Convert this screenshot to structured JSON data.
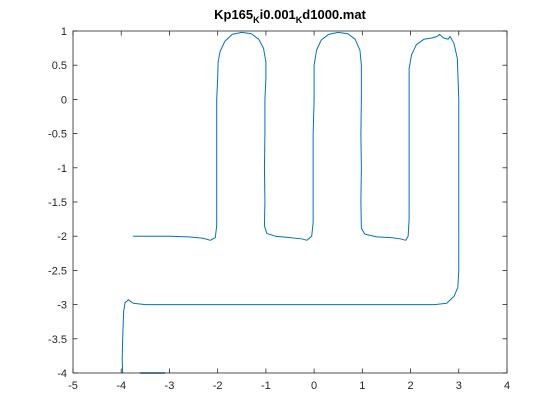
{
  "chart_data": {
    "type": "line",
    "title": {
      "segments": [
        {
          "text": "Kp165",
          "sub": false
        },
        {
          "text": "K",
          "sub": true
        },
        {
          "text": "i0.001",
          "sub": false
        },
        {
          "text": "K",
          "sub": true
        },
        {
          "text": "d1000.mat",
          "sub": false
        }
      ]
    },
    "xlabel": "",
    "ylabel": "",
    "xlim": [
      -5,
      4
    ],
    "ylim": [
      -4,
      1
    ],
    "xticks": [
      -5,
      -4,
      -3,
      -2,
      -1,
      0,
      1,
      2,
      3,
      4
    ],
    "yticks": [
      1,
      0.5,
      0,
      -0.5,
      -1,
      -1.5,
      -2,
      -2.5,
      -3,
      -3.5,
      -4
    ],
    "xtick_labels": [
      "-5",
      "-4",
      "-3",
      "-2",
      "-1",
      "0",
      "1",
      "2",
      "3",
      "4"
    ],
    "ytick_labels": [
      "1",
      "0.5",
      "0",
      "-0.5",
      "-1",
      "-1.5",
      "-2",
      "-2.5",
      "-3",
      "-3.5",
      "-4"
    ],
    "grid": false,
    "line_color": "#0072BD",
    "series": [
      {
        "points": [
          [
            -3.75,
            -2.0
          ],
          [
            -3.4,
            -2.0
          ],
          [
            -3.0,
            -2.0
          ],
          [
            -2.6,
            -2.01
          ],
          [
            -2.3,
            -2.03
          ],
          [
            -2.15,
            -2.06
          ],
          [
            -2.05,
            -2.02
          ],
          [
            -2.02,
            -1.85
          ],
          [
            -2.02,
            -1.5
          ],
          [
            -2.02,
            -1.0
          ],
          [
            -2.02,
            -0.5
          ],
          [
            -2.02,
            0.0
          ],
          [
            -2.0,
            0.3
          ],
          [
            -1.99,
            0.55
          ],
          [
            -1.95,
            0.7
          ],
          [
            -1.85,
            0.85
          ],
          [
            -1.7,
            0.95
          ],
          [
            -1.5,
            0.98
          ],
          [
            -1.3,
            0.96
          ],
          [
            -1.15,
            0.88
          ],
          [
            -1.05,
            0.75
          ],
          [
            -1.0,
            0.55
          ],
          [
            -1.0,
            0.3
          ],
          [
            -1.02,
            0.0
          ],
          [
            -1.02,
            -0.5
          ],
          [
            -1.03,
            -1.0
          ],
          [
            -1.02,
            -1.5
          ],
          [
            -1.03,
            -1.85
          ],
          [
            -0.98,
            -1.96
          ],
          [
            -0.8,
            -2.0
          ],
          [
            -0.5,
            -2.02
          ],
          [
            -0.25,
            -2.04
          ],
          [
            -0.15,
            -2.06
          ],
          [
            -0.05,
            -2.0
          ],
          [
            -0.02,
            -1.8
          ],
          [
            -0.02,
            -1.5
          ],
          [
            -0.02,
            -1.0
          ],
          [
            -0.02,
            -0.5
          ],
          [
            0.0,
            0.0
          ],
          [
            0.0,
            0.5
          ],
          [
            0.05,
            0.72
          ],
          [
            0.15,
            0.87
          ],
          [
            0.3,
            0.95
          ],
          [
            0.5,
            0.98
          ],
          [
            0.7,
            0.96
          ],
          [
            0.85,
            0.88
          ],
          [
            0.95,
            0.72
          ],
          [
            0.98,
            0.5
          ],
          [
            0.98,
            0.0
          ],
          [
            0.97,
            -0.5
          ],
          [
            0.98,
            -1.0
          ],
          [
            0.97,
            -1.5
          ],
          [
            0.98,
            -1.88
          ],
          [
            1.05,
            -1.97
          ],
          [
            1.3,
            -2.01
          ],
          [
            1.6,
            -2.02
          ],
          [
            1.8,
            -2.04
          ],
          [
            1.9,
            -2.06
          ],
          [
            1.95,
            -2.0
          ],
          [
            1.97,
            -1.75
          ],
          [
            1.97,
            -1.5
          ],
          [
            1.97,
            -1.0
          ],
          [
            1.97,
            -0.5
          ],
          [
            1.97,
            0.0
          ],
          [
            1.97,
            0.45
          ],
          [
            2.02,
            0.65
          ],
          [
            2.12,
            0.8
          ],
          [
            2.28,
            0.88
          ],
          [
            2.45,
            0.9
          ],
          [
            2.55,
            0.92
          ],
          [
            2.6,
            0.95
          ],
          [
            2.68,
            0.9
          ],
          [
            2.78,
            0.88
          ],
          [
            2.82,
            0.92
          ],
          [
            2.9,
            0.82
          ],
          [
            2.97,
            0.6
          ],
          [
            3.0,
            0.0
          ],
          [
            3.0,
            -0.5
          ],
          [
            3.0,
            -1.0
          ],
          [
            3.0,
            -1.5
          ],
          [
            3.0,
            -2.0
          ],
          [
            3.0,
            -2.5
          ],
          [
            2.98,
            -2.75
          ],
          [
            2.9,
            -2.88
          ],
          [
            2.75,
            -2.98
          ],
          [
            2.5,
            -3.0
          ],
          [
            2.0,
            -3.0
          ],
          [
            1.0,
            -3.0
          ],
          [
            0.0,
            -3.0
          ],
          [
            -1.0,
            -3.0
          ],
          [
            -2.0,
            -3.0
          ],
          [
            -3.0,
            -3.0
          ],
          [
            -3.5,
            -3.0
          ],
          [
            -3.75,
            -2.98
          ],
          [
            -3.85,
            -2.93
          ],
          [
            -3.92,
            -2.97
          ],
          [
            -3.95,
            -3.1
          ],
          [
            -3.97,
            -3.5
          ],
          [
            -3.98,
            -3.8
          ],
          [
            -3.97,
            -4.0
          ]
        ]
      },
      {
        "points": [
          [
            -3.6,
            -4.0
          ],
          [
            -3.1,
            -4.0
          ]
        ]
      }
    ]
  }
}
